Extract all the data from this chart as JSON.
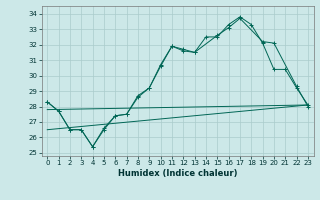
{
  "xlabel": "Humidex (Indice chaleur)",
  "background_color": "#cce8e8",
  "grid_color": "#aacccc",
  "line_color": "#006655",
  "xlim": [
    -0.5,
    23.5
  ],
  "ylim": [
    24.8,
    34.5
  ],
  "yticks": [
    25,
    26,
    27,
    28,
    29,
    30,
    31,
    32,
    33,
    34
  ],
  "xticks": [
    0,
    1,
    2,
    3,
    4,
    5,
    6,
    7,
    8,
    9,
    10,
    11,
    12,
    13,
    14,
    15,
    16,
    17,
    18,
    19,
    20,
    21,
    22,
    23
  ],
  "series1_x": [
    0,
    1,
    2,
    3,
    4,
    5,
    6,
    7,
    8,
    9,
    10,
    11,
    12,
    13,
    14,
    15,
    16,
    17,
    18,
    19,
    20,
    21,
    22,
    23
  ],
  "series1_y": [
    28.3,
    27.7,
    26.5,
    26.5,
    25.4,
    26.5,
    27.4,
    27.5,
    28.7,
    29.2,
    30.7,
    31.9,
    31.7,
    31.5,
    32.5,
    32.5,
    33.3,
    33.8,
    33.3,
    32.1,
    30.4,
    30.4,
    29.2,
    28.1
  ],
  "series2_x": [
    0,
    1,
    2,
    3,
    4,
    5,
    6,
    7,
    8,
    9,
    10,
    11,
    12,
    13,
    15,
    16,
    17,
    19,
    20,
    22,
    23
  ],
  "series2_y": [
    28.3,
    27.7,
    26.5,
    26.5,
    25.4,
    26.6,
    27.4,
    27.5,
    28.6,
    29.2,
    30.6,
    31.9,
    31.6,
    31.5,
    32.6,
    33.1,
    33.7,
    32.2,
    32.1,
    29.3,
    28.0
  ],
  "series3_x": [
    0,
    23
  ],
  "series3_y": [
    27.8,
    28.1
  ],
  "series4_x": [
    0,
    23
  ],
  "series4_y": [
    26.5,
    28.1
  ]
}
